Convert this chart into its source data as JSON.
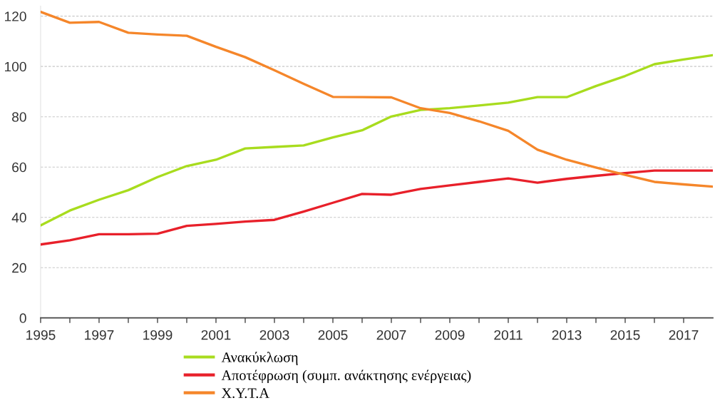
{
  "chart_data": {
    "type": "line",
    "x": [
      1995,
      1996,
      1997,
      1998,
      1999,
      2000,
      2001,
      2002,
      2003,
      2004,
      2005,
      2006,
      2007,
      2008,
      2009,
      2010,
      2011,
      2012,
      2013,
      2014,
      2015,
      2016,
      2017,
      2018
    ],
    "series": [
      {
        "name": "Ανακύκλωση",
        "color": "#a8dc1e",
        "values": [
          36.8,
          42.7,
          47.0,
          50.8,
          56.0,
          60.4,
          62.9,
          67.4,
          68.0,
          68.6,
          71.8,
          74.6,
          80.1,
          82.7,
          83.4,
          84.5,
          85.6,
          87.8,
          87.8,
          92.2,
          96.2,
          100.9,
          102.8,
          104.5
        ]
      },
      {
        "name": "Αποτέφρωση (συμπ. ανάκτησης ενέργειας)",
        "color": "#e8202a",
        "values": [
          29.2,
          30.9,
          33.3,
          33.3,
          33.5,
          36.6,
          37.4,
          38.3,
          39.0,
          42.3,
          45.8,
          49.3,
          49.0,
          51.3,
          52.7,
          54.1,
          55.5,
          53.8,
          55.3,
          56.5,
          57.6,
          58.6,
          58.6,
          58.6
        ]
      },
      {
        "name": "Χ.Υ.Τ.Α",
        "color": "#f5862a",
        "values": [
          121.7,
          117.4,
          117.7,
          113.4,
          112.7,
          112.2,
          107.8,
          103.7,
          98.5,
          93.1,
          87.9,
          87.8,
          87.7,
          83.4,
          81.5,
          78.2,
          74.4,
          66.9,
          62.9,
          59.8,
          56.9,
          54.1,
          53.1,
          52.2
        ]
      }
    ],
    "xlim": [
      1995,
      2018
    ],
    "xticks": [
      1995,
      {
        "value": 1996,
        "label": null
      },
      1997,
      {
        "value": 1998,
        "label": null
      },
      1999,
      {
        "value": 2000,
        "label": null
      },
      2001,
      {
        "value": 2002,
        "label": null
      },
      2003,
      {
        "value": 2004,
        "label": null
      },
      2005,
      {
        "value": 2006,
        "label": null
      },
      2007,
      {
        "value": 2008,
        "label": null
      },
      2009,
      {
        "value": 2010,
        "label": null
      },
      2011,
      {
        "value": 2012,
        "label": null
      },
      2013,
      {
        "value": 2014,
        "label": null
      },
      2015,
      {
        "value": 2016,
        "label": null
      },
      2017
    ],
    "ylim": [
      0,
      124
    ],
    "yticks": [
      0,
      20,
      40,
      60,
      80,
      100,
      120
    ],
    "grid": "y",
    "legend": "bottom",
    "marker": "none",
    "line_style": "solid"
  }
}
